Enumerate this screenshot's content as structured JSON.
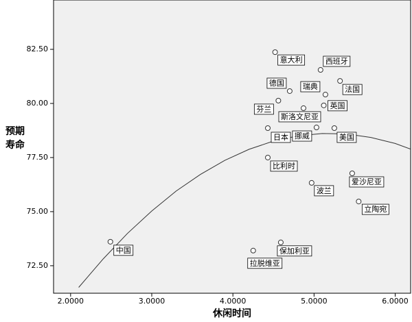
{
  "chart_data": {
    "type": "scatter",
    "x_label": "休闲时间",
    "y_label": "预期寿命",
    "xlim": [
      1.79,
      6.19
    ],
    "ylim": [
      71.23,
      84.78
    ],
    "xticks": [
      {
        "value": 2,
        "label": "2.0000"
      },
      {
        "value": 3,
        "label": "3.0000"
      },
      {
        "value": 4,
        "label": "4.0000"
      },
      {
        "value": 5,
        "label": "5.0000"
      },
      {
        "value": 6,
        "label": "6.0000"
      }
    ],
    "yticks": [
      {
        "value": 72.5,
        "label": "72.50"
      },
      {
        "value": 75,
        "label": "75.00"
      },
      {
        "value": 77.5,
        "label": "77.50"
      },
      {
        "value": 80,
        "label": "80.00"
      },
      {
        "value": 82.5,
        "label": "82.50"
      }
    ],
    "point_labels": [
      "意大利",
      "西班牙",
      "德国",
      "瑞典",
      "法国",
      "芬兰",
      "英国",
      "斯洛文尼亚",
      "日本",
      "挪威",
      "美国",
      "比利时",
      "爱沙尼亚",
      "波兰",
      "立陶宛",
      "中国",
      "保加利亚",
      "拉脱维亚"
    ],
    "x": [
      4.52,
      5.08,
      4.7,
      5.14,
      5.32,
      4.56,
      5.12,
      4.87,
      4.43,
      5.03,
      5.25,
      4.43,
      5.47,
      4.97,
      5.55,
      2.49,
      4.59,
      4.25
    ],
    "y": [
      82.37,
      81.55,
      80.57,
      80.41,
      81.04,
      80.13,
      79.91,
      79.78,
      78.86,
      78.89,
      78.86,
      77.5,
      76.77,
      76.33,
      75.47,
      73.61,
      73.58,
      73.2
    ],
    "color": "#333333",
    "fit": {
      "x": [
        2.1,
        2.4,
        2.7,
        3.0,
        3.3,
        3.6,
        3.9,
        4.2,
        4.5,
        4.8,
        5.1,
        5.4,
        5.7,
        6.0,
        6.19
      ],
      "y": [
        71.5,
        72.81,
        73.99,
        75.03,
        75.95,
        76.72,
        77.37,
        77.88,
        78.26,
        78.5,
        78.61,
        78.59,
        78.43,
        78.15,
        77.89
      ]
    }
  }
}
